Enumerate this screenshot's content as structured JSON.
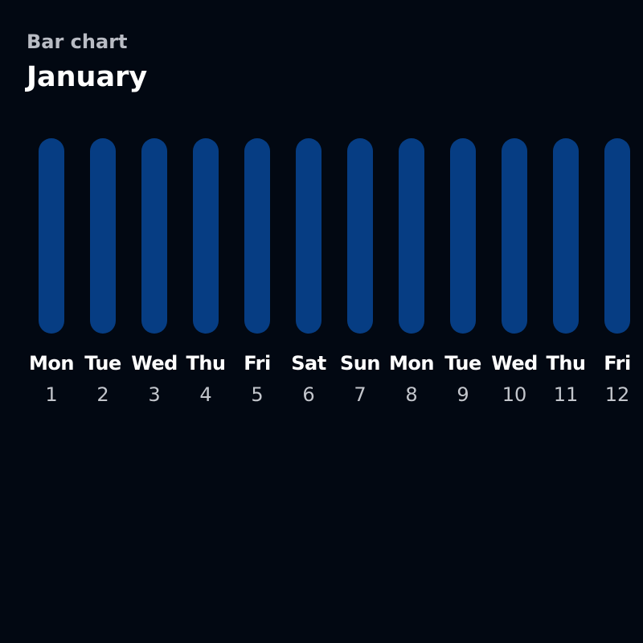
{
  "header": {
    "subtitle": "Bar chart",
    "title": "January"
  },
  "colors": {
    "background": "#020812",
    "bar": "#063d83"
  },
  "chart_data": {
    "type": "bar",
    "categories": [
      "Mon",
      "Tue",
      "Wed",
      "Thu",
      "Fri",
      "Sat",
      "Sun",
      "Mon",
      "Tue",
      "Wed",
      "Thu",
      "Fri"
    ],
    "dates": [
      "1",
      "2",
      "3",
      "4",
      "5",
      "6",
      "7",
      "8",
      "9",
      "10",
      "11",
      "12"
    ],
    "values": [
      1,
      1,
      1,
      1,
      1,
      1,
      1,
      1,
      1,
      1,
      1,
      1
    ],
    "ylim": [
      0,
      1
    ],
    "grid": false
  }
}
